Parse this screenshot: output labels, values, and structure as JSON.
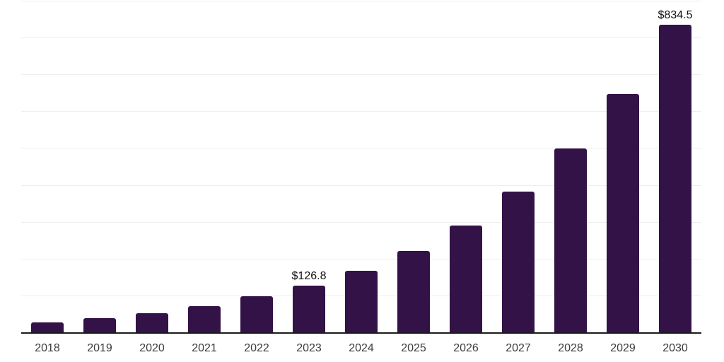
{
  "chart_data": {
    "type": "bar",
    "title": "",
    "xlabel": "",
    "ylabel": "",
    "categories": [
      "2018",
      "2019",
      "2020",
      "2021",
      "2022",
      "2023",
      "2024",
      "2025",
      "2026",
      "2027",
      "2028",
      "2029",
      "2030"
    ],
    "values": [
      26,
      38,
      52,
      71,
      97,
      126.8,
      167,
      221,
      290,
      382,
      499,
      646,
      834.5
    ],
    "data_labels": [
      "",
      "",
      "",
      "",
      "",
      "$126.8",
      "",
      "",
      "",
      "",
      "",
      "",
      "$834.5"
    ],
    "ylim": [
      0,
      900
    ],
    "gridline_interval": 100,
    "grid": "horizontal-only",
    "legend_position": "none",
    "y_axis_tick_labels_visible": false,
    "colors": {
      "bar_fill": "#331247",
      "gridline": "#ededed",
      "x_axis_line": "#1b1b1b",
      "tick_label": "#3c3c3c",
      "data_label": "#111111",
      "background": "#ffffff"
    }
  }
}
